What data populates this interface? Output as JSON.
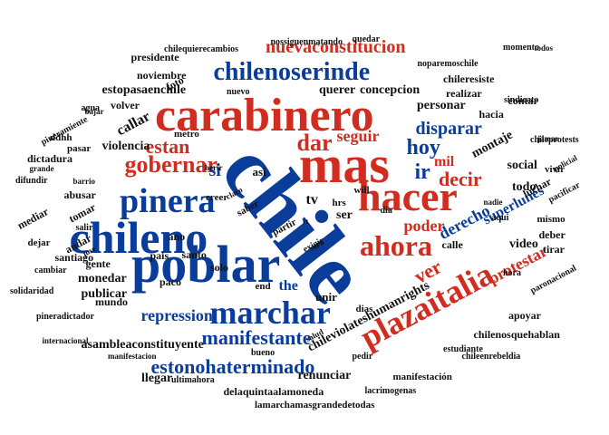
{
  "colors": {
    "blue": "#0a3c99",
    "red": "#d22b1f",
    "black": "#111111"
  },
  "words": [
    {
      "text": "chile",
      "color": "blue"
    },
    {
      "text": "carabinero",
      "color": "red"
    },
    {
      "text": "mas",
      "color": "red"
    },
    {
      "text": "poblar",
      "color": "blue"
    },
    {
      "text": "chileno",
      "color": "blue"
    },
    {
      "text": "hacer",
      "color": "red"
    },
    {
      "text": "plazaitalia",
      "color": "red"
    },
    {
      "text": "pinera",
      "color": "blue"
    },
    {
      "text": "marchar",
      "color": "blue"
    },
    {
      "text": "ahora",
      "color": "red"
    },
    {
      "text": "chilenoserinde",
      "color": "blue"
    },
    {
      "text": "nuevaconstitucion",
      "color": "red"
    },
    {
      "text": "gobernar",
      "color": "red"
    },
    {
      "text": "estonohaterminado",
      "color": "blue"
    },
    {
      "text": "manifestante",
      "color": "blue"
    },
    {
      "text": "hoy",
      "color": "blue"
    },
    {
      "text": "dar",
      "color": "red"
    },
    {
      "text": "ir",
      "color": "blue"
    },
    {
      "text": "ver",
      "color": "red"
    },
    {
      "text": "decir",
      "color": "red"
    },
    {
      "text": "disparar",
      "color": "blue"
    },
    {
      "text": "estan",
      "color": "red"
    },
    {
      "text": "si",
      "color": "blue"
    },
    {
      "text": "seguir",
      "color": "red"
    },
    {
      "text": "repression",
      "color": "blue"
    },
    {
      "text": "derecho",
      "color": "blue"
    },
    {
      "text": "protestar",
      "color": "red"
    },
    {
      "text": "chileviolateshumanrights",
      "color": "black"
    },
    {
      "text": "poder",
      "color": "red"
    },
    {
      "text": "mil",
      "color": "red"
    },
    {
      "text": "superlunes",
      "color": "blue"
    },
    {
      "text": "the",
      "color": "blue"
    },
    {
      "text": "asambleaconstituyente",
      "color": "black"
    },
    {
      "text": "estopasaenchile",
      "color": "black"
    },
    {
      "text": "personar",
      "color": "black"
    },
    {
      "text": "querer",
      "color": "black"
    },
    {
      "text": "concepcion",
      "color": "black"
    },
    {
      "text": "noviembre",
      "color": "black"
    },
    {
      "text": "callar",
      "color": "black"
    },
    {
      "text": "violencia",
      "color": "black"
    },
    {
      "text": "montaje",
      "color": "black"
    },
    {
      "text": "social",
      "color": "black"
    },
    {
      "text": "todo",
      "color": "black"
    },
    {
      "text": "video",
      "color": "black"
    },
    {
      "text": "tv",
      "color": "black"
    },
    {
      "text": "ser",
      "color": "black"
    },
    {
      "text": "llegar",
      "color": "black"
    },
    {
      "text": "unir",
      "color": "black"
    },
    {
      "text": "renunciar",
      "color": "black"
    },
    {
      "text": "delaquintaalamoneda",
      "color": "black"
    },
    {
      "text": "lamarchamasgrandedetodas",
      "color": "black"
    },
    {
      "text": "chilequierecambios",
      "color": "black"
    },
    {
      "text": "nossiguenmatando",
      "color": "black"
    },
    {
      "text": "quedar",
      "color": "black"
    },
    {
      "text": "momento",
      "color": "black"
    },
    {
      "text": "noparemoschile",
      "color": "black"
    },
    {
      "text": "chileresiste",
      "color": "black"
    },
    {
      "text": "presidente",
      "color": "black"
    },
    {
      "text": "volver",
      "color": "black"
    },
    {
      "text": "nuevo",
      "color": "black"
    },
    {
      "text": "realizar",
      "color": "black"
    },
    {
      "text": "sindicato",
      "color": "black"
    },
    {
      "text": "policial",
      "color": "black"
    },
    {
      "text": "contar",
      "color": "black"
    },
    {
      "text": "hacia",
      "color": "black"
    },
    {
      "text": "chileprotests",
      "color": "black"
    },
    {
      "text": "vivir",
      "color": "black"
    },
    {
      "text": "luchar",
      "color": "black"
    },
    {
      "text": "pacificar",
      "color": "black"
    },
    {
      "text": "mismo",
      "color": "black"
    },
    {
      "text": "deber",
      "color": "black"
    },
    {
      "text": "tirar",
      "color": "black"
    },
    {
      "text": "paronacional",
      "color": "black"
    },
    {
      "text": "apoyar",
      "color": "black"
    },
    {
      "text": "chilenosquehablan",
      "color": "black"
    },
    {
      "text": "chileenrebeldia",
      "color": "black"
    },
    {
      "text": "estudiante",
      "color": "black"
    },
    {
      "text": "manifestación",
      "color": "black"
    },
    {
      "text": "lacrimogenas",
      "color": "black"
    },
    {
      "text": "ultimahora",
      "color": "black"
    },
    {
      "text": "bueno",
      "color": "black"
    },
    {
      "text": "manifestacion",
      "color": "black"
    },
    {
      "text": "internacional",
      "color": "black"
    },
    {
      "text": "pineradictador",
      "color": "black"
    },
    {
      "text": "mundo",
      "color": "black"
    },
    {
      "text": "solidaridad",
      "color": "black"
    },
    {
      "text": "cambiar",
      "color": "black"
    },
    {
      "text": "dejar",
      "color": "black"
    },
    {
      "text": "mediar",
      "color": "black"
    },
    {
      "text": "difundir",
      "color": "black"
    },
    {
      "text": "grande",
      "color": "black"
    },
    {
      "text": "pineramiente",
      "color": "black"
    },
    {
      "text": "dictadura",
      "color": "black"
    },
    {
      "text": "ddhh",
      "color": "black"
    },
    {
      "text": "agua",
      "color": "black"
    },
    {
      "text": "pasar",
      "color": "black"
    },
    {
      "text": "foto",
      "color": "black"
    },
    {
      "text": "metro",
      "color": "black"
    },
    {
      "text": "ano",
      "color": "black"
    },
    {
      "text": "abusar",
      "color": "black"
    },
    {
      "text": "tomar",
      "color": "black"
    },
    {
      "text": "salir",
      "color": "black"
    },
    {
      "text": "andar",
      "color": "black"
    },
    {
      "text": "santiago",
      "color": "black"
    },
    {
      "text": "gente",
      "color": "black"
    },
    {
      "text": "monedar",
      "color": "black"
    },
    {
      "text": "publicar",
      "color": "black"
    },
    {
      "text": "pais",
      "color": "black"
    },
    {
      "text": "paco",
      "color": "black"
    },
    {
      "text": "santo",
      "color": "black"
    },
    {
      "text": "solo",
      "color": "black"
    },
    {
      "text": "creer",
      "color": "black"
    },
    {
      "text": "saber",
      "color": "black"
    },
    {
      "text": "partir",
      "color": "black"
    },
    {
      "text": "exigir",
      "color": "black"
    },
    {
      "text": "hrs",
      "color": "black"
    },
    {
      "text": "will",
      "color": "black"
    },
    {
      "text": "dia",
      "color": "black"
    },
    {
      "text": "aqui",
      "color": "black"
    },
    {
      "text": "calle",
      "color": "black"
    },
    {
      "text": "hora",
      "color": "black"
    },
    {
      "text": "end",
      "color": "black"
    },
    {
      "text": "dias",
      "color": "black"
    },
    {
      "text": "pedir",
      "color": "black"
    },
    {
      "text": "salud",
      "color": "black"
    },
    {
      "text": "herir",
      "color": "black"
    },
    {
      "text": "claro",
      "color": "black"
    },
    {
      "text": "jamar",
      "color": "black"
    },
    {
      "text": "nadie",
      "color": "black"
    },
    {
      "text": "barrio",
      "color": "black"
    },
    {
      "text": "jose",
      "color": "black"
    },
    {
      "text": "asi",
      "color": "black"
    },
    {
      "text": "sera",
      "color": "black"
    },
    {
      "text": "rt",
      "color": "black"
    },
    {
      "text": "bajar",
      "color": "black"
    },
    {
      "text": "todos",
      "color": "black"
    }
  ]
}
